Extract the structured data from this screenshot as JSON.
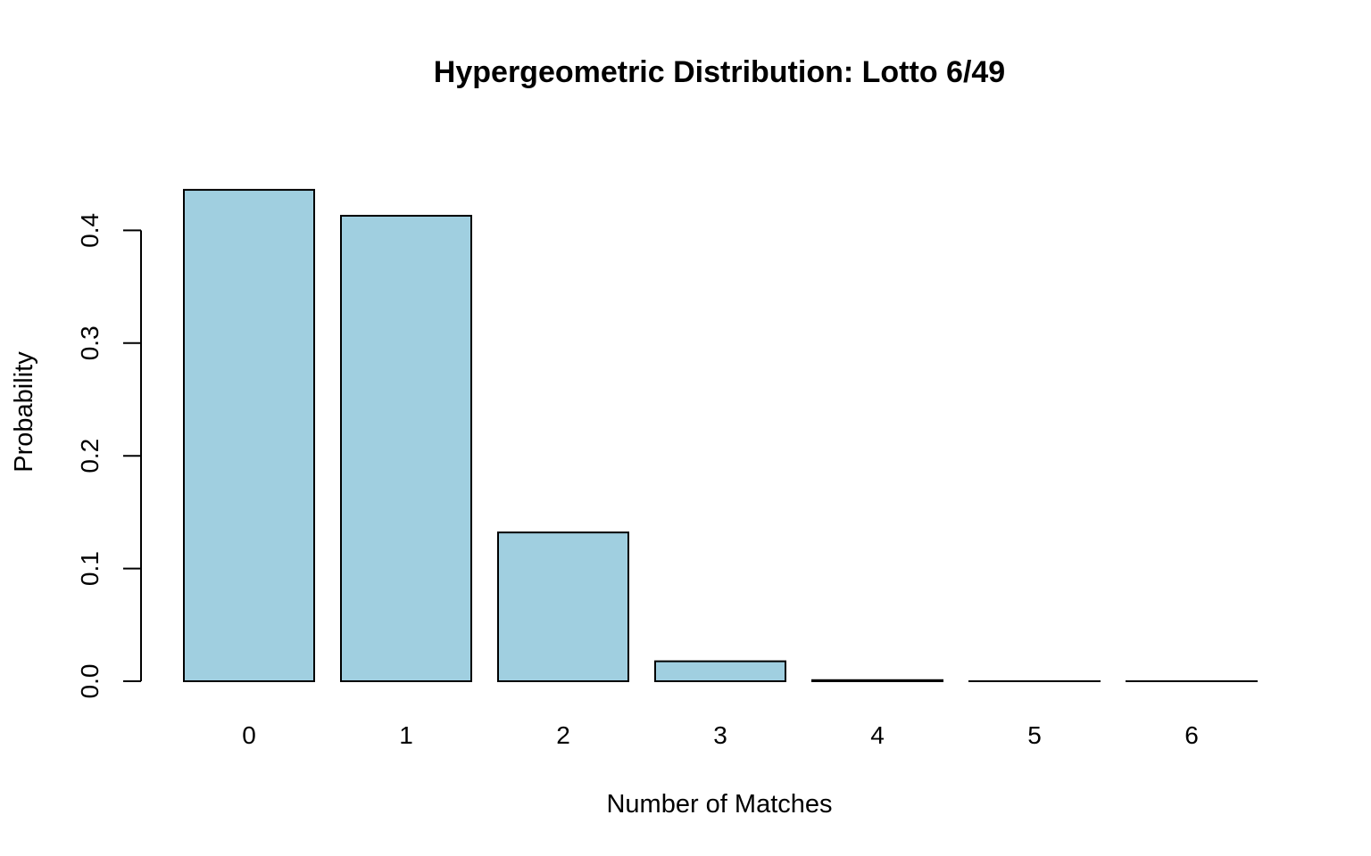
{
  "chart_data": {
    "type": "bar",
    "title": "Hypergeometric Distribution: Lotto 6/49",
    "xlabel": "Number of Matches",
    "ylabel": "Probability",
    "categories": [
      "0",
      "1",
      "2",
      "3",
      "4",
      "5",
      "6"
    ],
    "values": [
      0.436,
      0.413,
      0.132,
      0.0177,
      0.00097,
      1.84e-05,
      7e-08
    ],
    "ylim": [
      0,
      0.44
    ],
    "yticks": [
      0.0,
      0.1,
      0.2,
      0.3,
      0.4
    ],
    "ytick_labels": [
      "0.0",
      "0.1",
      "0.2",
      "0.3",
      "0.4"
    ],
    "grid": false,
    "bar_color": "#a0cfe0",
    "edge_color": "#000000"
  }
}
